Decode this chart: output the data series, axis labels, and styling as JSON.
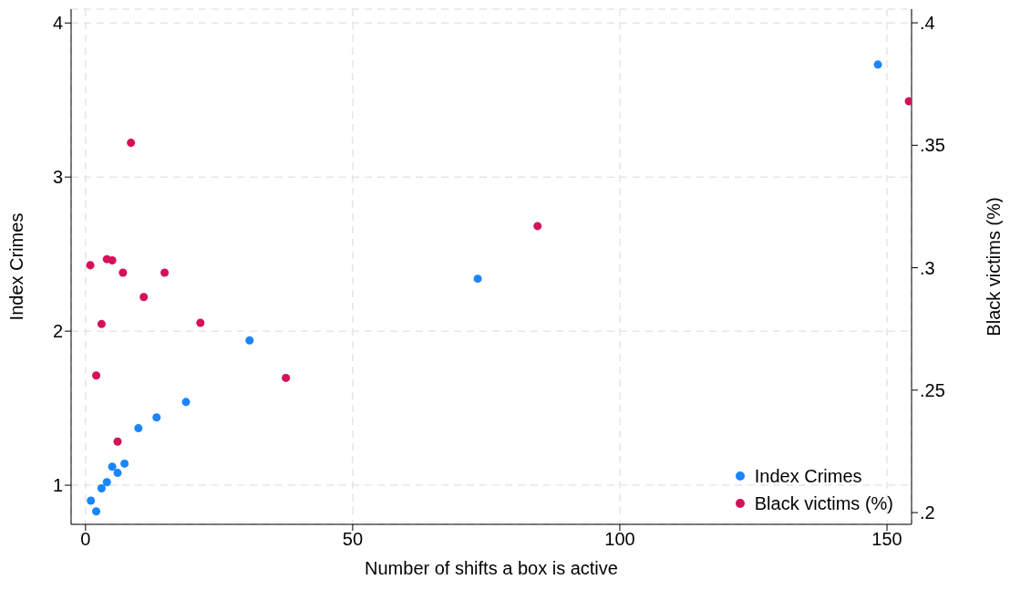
{
  "chart_data": {
    "type": "scatter",
    "xlabel": "Number of shifts a box is active",
    "ylabel": "Index Crimes",
    "y2label": "Black victims (%)",
    "xlim": [
      -2.7,
      154.6
    ],
    "xticks": [
      0,
      50,
      100,
      150
    ],
    "ylim": [
      0.746,
      4.09
    ],
    "yticks": [
      1,
      2,
      3,
      4
    ],
    "y2lim": [
      0.1952,
      0.4056
    ],
    "y2ticks": [
      {
        "value": 0.2,
        "label": ".2"
      },
      {
        "value": 0.25,
        "label": ".25"
      },
      {
        "value": 0.3,
        "label": ".3"
      },
      {
        "value": 0.35,
        "label": ".35"
      },
      {
        "value": 0.4,
        "label": ".4"
      }
    ],
    "grid": true,
    "legend": "bottom right",
    "marker": "circle",
    "series": [
      {
        "name": "Index Crimes",
        "color": "#1a85ff",
        "x": [
          1,
          2,
          3,
          4,
          5,
          6,
          7.3,
          9.9,
          13.3,
          18.8,
          30.7,
          73.4,
          148.3
        ],
        "values": [
          0.9,
          0.83,
          0.98,
          1.02,
          1.12,
          1.08,
          1.14,
          1.37,
          1.44,
          1.54,
          1.94,
          2.34,
          3.73
        ]
      },
      {
        "name": "Black victims (%)",
        "color": "#d41159",
        "axis": "y2",
        "x": [
          0.9,
          2,
          3,
          4,
          5,
          6,
          7,
          8.5,
          10.9,
          14.8,
          21.5,
          37.5,
          84.6,
          154.1
        ],
        "values": [
          0.301,
          0.256,
          0.277,
          0.3035,
          0.303,
          0.229,
          0.298,
          0.351,
          0.288,
          0.298,
          0.2775,
          0.255,
          0.317,
          0.368
        ]
      }
    ]
  }
}
